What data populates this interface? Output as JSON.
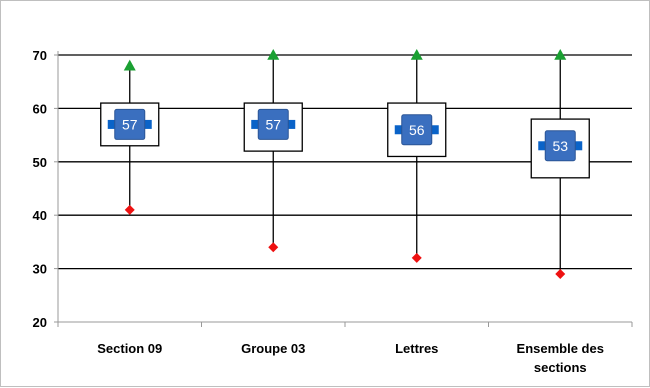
{
  "chart_data": {
    "type": "box",
    "categories": [
      [
        "Section 09"
      ],
      [
        "Groupe 03"
      ],
      [
        "Lettres"
      ],
      [
        "Ensemble des",
        "sections"
      ]
    ],
    "series": {
      "max": [
        68,
        70,
        70,
        70
      ],
      "q3": [
        61,
        61,
        61,
        58
      ],
      "median": [
        57,
        57,
        56,
        53
      ],
      "q1": [
        53,
        52,
        51,
        47
      ],
      "min": [
        41,
        34,
        32,
        29
      ]
    },
    "median_labels": [
      "57",
      "57",
      "56",
      "53"
    ],
    "ylim": [
      20,
      70
    ],
    "yticks": [
      20,
      30,
      40,
      50,
      60,
      70
    ],
    "ytick_labels": [
      "20",
      "30",
      "40",
      "50",
      "60",
      "70"
    ],
    "grid": true,
    "colors": {
      "max_marker": "#1aa032",
      "min_marker": "#ee1111",
      "median_box": "#3a6fbf",
      "median_bar": "#0a63c8",
      "grid": "#000000"
    }
  }
}
